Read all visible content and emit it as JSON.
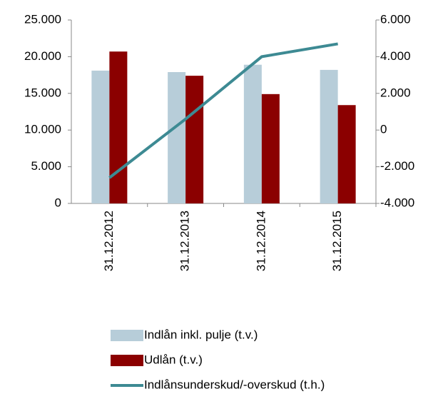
{
  "chart_data": {
    "type": "bar_line",
    "categories": [
      "31.12.2012",
      "31.12.2013",
      "31.12.2014",
      "31.12.2015"
    ],
    "series": [
      {
        "name": "Indlån inkl. pulje (t.v.)",
        "color": "#b7cdd9",
        "type": "bar",
        "values": [
          18100,
          17900,
          18900,
          18200
        ]
      },
      {
        "name": "Udlån (t.v.)",
        "color": "#8b0000",
        "type": "bar",
        "values": [
          20700,
          17400,
          14900,
          13400
        ]
      },
      {
        "name": "Indlånsunderskud/-overskud (t.h.)",
        "color": "#3d8a93",
        "type": "line",
        "axis": "y2",
        "values": [
          -2600,
          600,
          4000,
          4700
        ]
      }
    ],
    "ylim": [
      0,
      25000
    ],
    "yticks": [
      0,
      {
        "value": 5000,
        "label": "5.000"
      },
      {
        "value": 10000,
        "label": "10.000"
      },
      {
        "value": 15000,
        "label": "15.000"
      },
      {
        "value": 20000,
        "label": "20.000"
      },
      {
        "value": 25000,
        "label": "25.000"
      }
    ],
    "y2lim": [
      -4000,
      6000
    ],
    "y2ticks": [
      {
        "value": -4000,
        "label": "-4.000"
      },
      {
        "value": -2000,
        "label": "-2.000"
      },
      0,
      {
        "value": 2000,
        "label": "2.000"
      },
      {
        "value": 4000,
        "label": "4.000"
      },
      {
        "value": 6000,
        "label": "6.000"
      }
    ],
    "legend": "bottom"
  }
}
